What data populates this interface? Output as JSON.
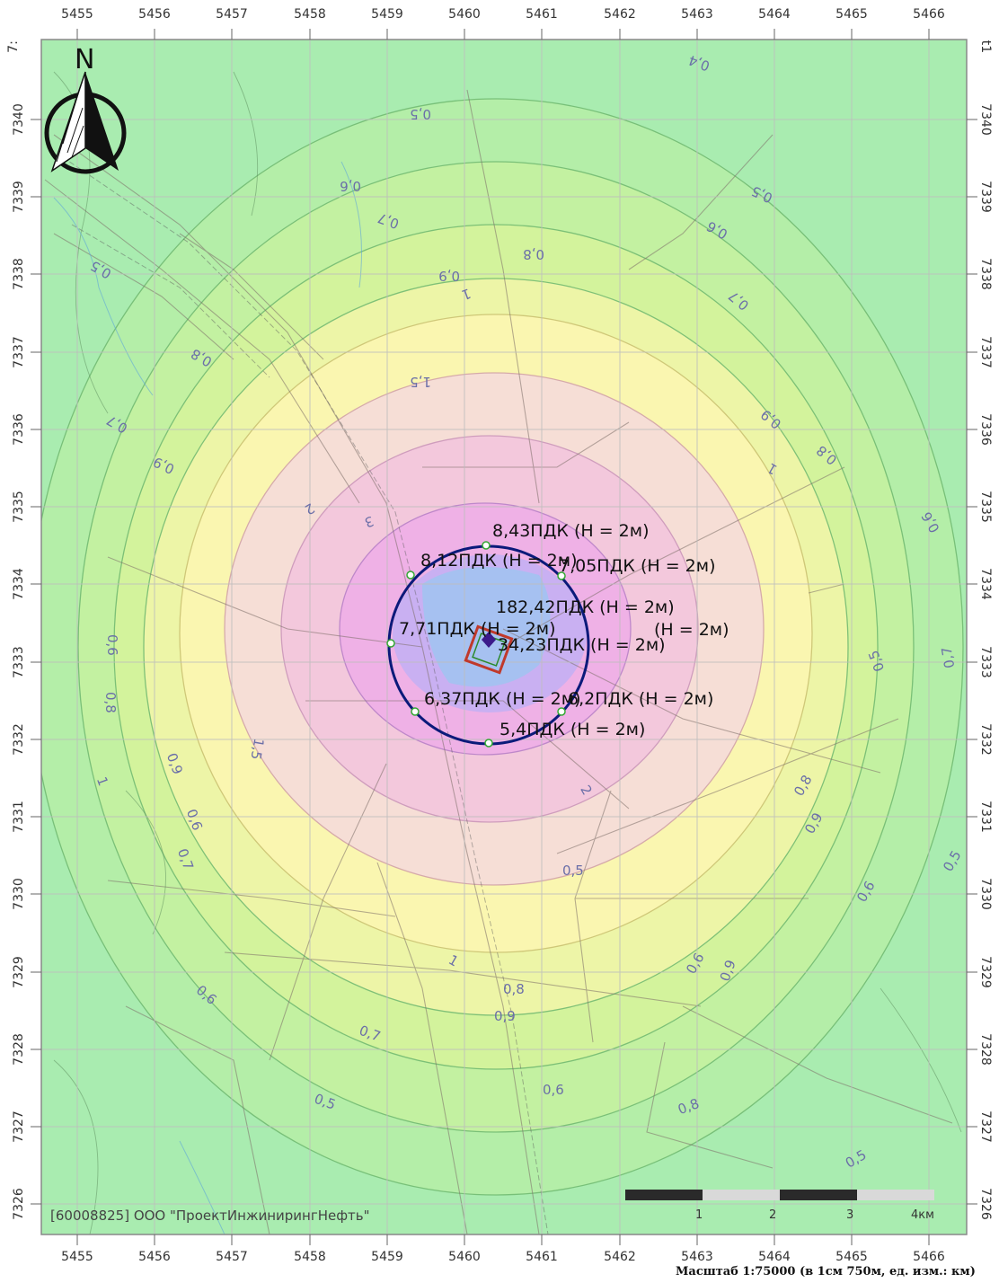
{
  "map": {
    "x_ticks": [
      "5455",
      "5456",
      "5457",
      "5458",
      "5459",
      "5460",
      "5461",
      "5462",
      "5463",
      "5464",
      "5465",
      "5466"
    ],
    "y_ticks": [
      "7340",
      "7339",
      "7338",
      "7337",
      "7336",
      "7335",
      "7334",
      "7333",
      "7332",
      "7331",
      "7330",
      "7329",
      "7328",
      "7327",
      "7326"
    ],
    "corner_left": "7:",
    "corner_right": "t1",
    "north_letter": "N",
    "organization": "[60008825] ООО \"ПроектИнжинирингНефть\"",
    "scale_caption": "Масштаб 1:75000 (в 1см 750м, ед. изм.: км)",
    "scalebar_labels": [
      "1",
      "2",
      "3",
      "4км"
    ],
    "unit_label": "км",
    "point_labels": [
      {
        "id": "p1",
        "text": "8,43ПДК (Н = 2м)"
      },
      {
        "id": "p2",
        "text": "8,12ПДК (Н = 2м)"
      },
      {
        "id": "p3",
        "text": "7,05ПДК (Н = 2м)"
      },
      {
        "id": "p4",
        "text": "182,42ПДК (Н = 2м)"
      },
      {
        "id": "p5",
        "text": "7,71ПДК (Н = 2м)"
      },
      {
        "id": "p6",
        "text": "(Н = 2м)"
      },
      {
        "id": "p7",
        "text": "34,23ПДК (Н = 2м)"
      },
      {
        "id": "p8",
        "text": "6,37ПДК (Н = 2м)"
      },
      {
        "id": "p9",
        "text": "6,2ПДК (Н = 2м)"
      },
      {
        "id": "p10",
        "text": "5,4ПДК (Н = 2м)"
      }
    ],
    "isoline_labels": [
      "0,4",
      "0,5",
      "0,5",
      "0,6",
      "0,7",
      "0,8",
      "0,9",
      "1",
      "0,5",
      "0,7",
      "0,6",
      "0,8",
      "0,9",
      "0,7",
      "1,5",
      "2",
      "3",
      "1",
      "0,9",
      "0,8",
      "0,6",
      "0,7",
      "0,5",
      "0,6",
      "0,8",
      "0,9",
      "1",
      "1,5",
      "2",
      "0,6",
      "0,7",
      "0,5",
      "0,8",
      "0,9",
      "0,6",
      "0,5",
      "0,8",
      "0,9",
      "0,6",
      "0,7",
      "0,6",
      "1",
      "0,9",
      "0,8",
      "0,5",
      "0,6",
      "0,5"
    ],
    "colors": {
      "bg_green": "#a9ecb0",
      "zone_0_6": "#b4eea8",
      "zone_0_7": "#c4f0a0",
      "zone_0_8": "#d4f29c",
      "zone_0_9": "#eef4a8",
      "zone_1": "#fbf5b0",
      "zone_1_5": "#f6dcd8",
      "zone_2": "#f2c6dc",
      "zone_3": "#eeb0e6",
      "zone_5": "#c6b0f2",
      "zone_10": "#a4c2f0",
      "sanitary_circle": "#0b1a7a",
      "site_outline": "#c0392b",
      "grid": "#bdbdbd"
    }
  }
}
